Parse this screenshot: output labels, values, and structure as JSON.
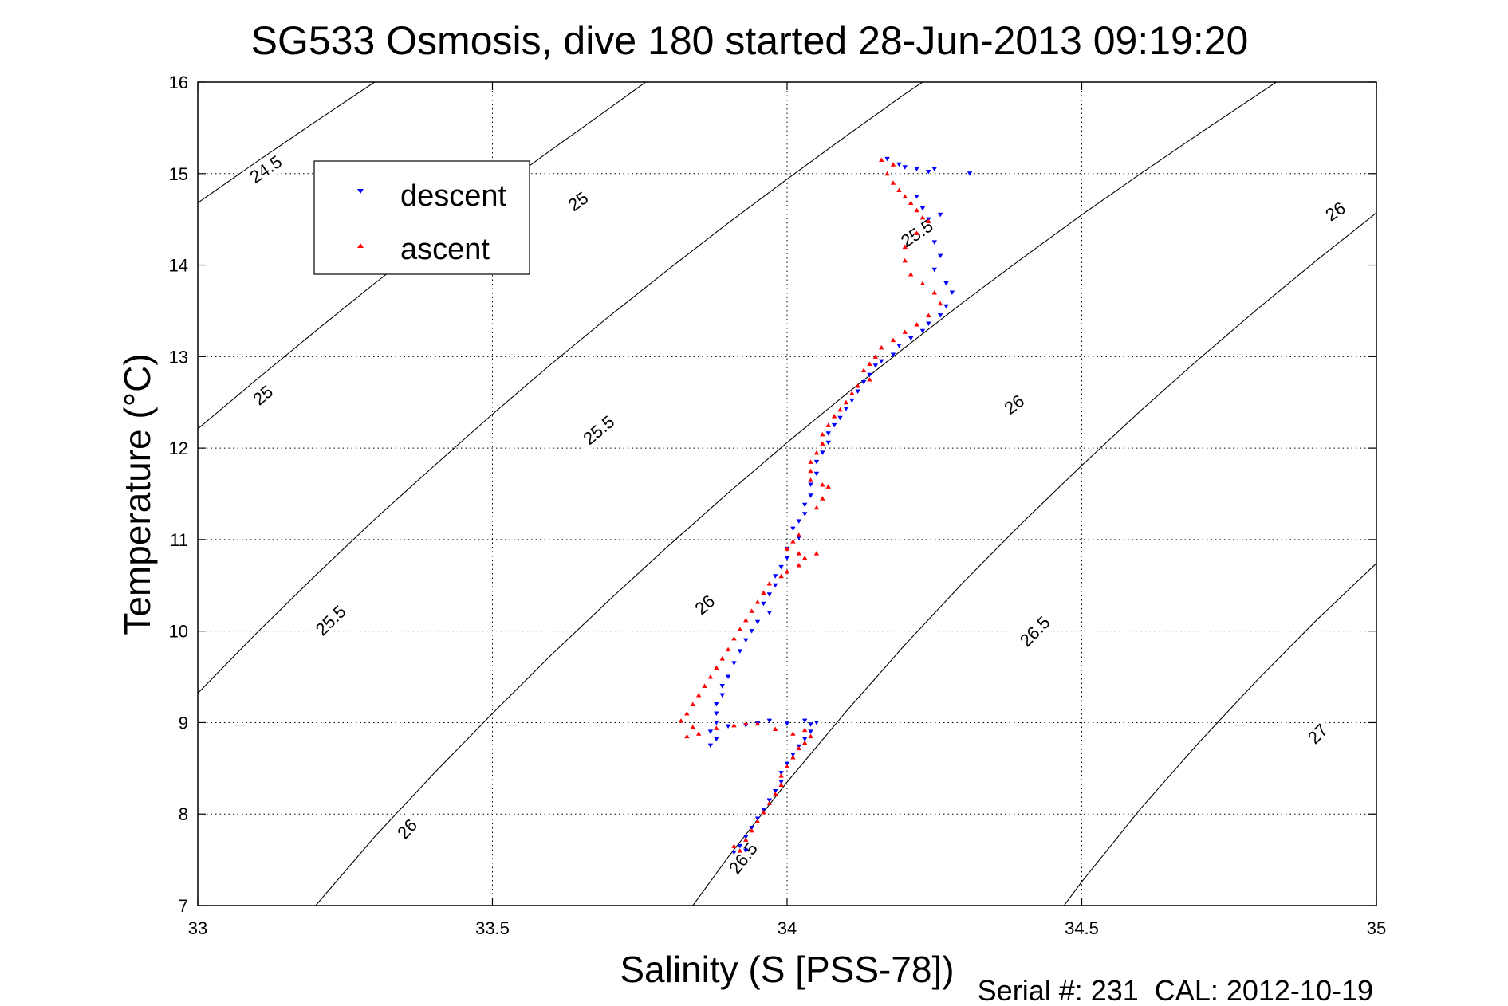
{
  "chart_data": {
    "type": "scatter",
    "title": "SG533 Osmosis, dive 180 started 28-Jun-2013 09:19:20",
    "xlabel": "Salinity (S [PSS-78])",
    "ylabel": "Temperature (°C)",
    "footer": "Serial #: 231  CAL: 2012-10-19",
    "xlim": [
      33,
      35
    ],
    "ylim": [
      7,
      16
    ],
    "grid": true,
    "legend_position": "top-left",
    "x_ticks": [
      "33",
      "33.5",
      "34",
      "34.5",
      "35"
    ],
    "y_ticks": [
      "7",
      "8",
      "9",
      "10",
      "11",
      "12",
      "13",
      "14",
      "15",
      "16"
    ],
    "contours": [
      {
        "label": "24.5",
        "points": [
          [
            33.0,
            14.68
          ],
          [
            33.1,
            15.13
          ],
          [
            33.2,
            15.57
          ],
          [
            33.3,
            16.0
          ]
        ]
      },
      {
        "label": "25",
        "points": [
          [
            33.0,
            12.21
          ],
          [
            33.1,
            12.75
          ],
          [
            33.2,
            13.28
          ],
          [
            33.3,
            13.8
          ],
          [
            33.4,
            14.3
          ],
          [
            33.5,
            14.79
          ],
          [
            33.6,
            15.26
          ],
          [
            33.7,
            15.72
          ],
          [
            33.76,
            16.0
          ]
        ]
      },
      {
        "label": "25.5",
        "points": [
          [
            33.0,
            9.32
          ],
          [
            33.1,
            9.98
          ],
          [
            33.2,
            10.61
          ],
          [
            33.3,
            11.22
          ],
          [
            33.4,
            11.8
          ],
          [
            33.5,
            12.37
          ],
          [
            33.6,
            12.92
          ],
          [
            33.7,
            13.45
          ],
          [
            33.8,
            13.96
          ],
          [
            33.9,
            14.46
          ],
          [
            34.0,
            14.94
          ],
          [
            34.1,
            15.41
          ],
          [
            34.2,
            15.87
          ],
          [
            34.23,
            16.0
          ]
        ]
      },
      {
        "label": "26",
        "points": [
          [
            33.2,
            7.0
          ],
          [
            33.3,
            7.75
          ],
          [
            33.4,
            8.44
          ],
          [
            33.5,
            9.1
          ],
          [
            33.6,
            9.74
          ],
          [
            33.7,
            10.35
          ],
          [
            33.8,
            10.94
          ],
          [
            33.9,
            11.51
          ],
          [
            34.0,
            12.06
          ],
          [
            34.1,
            12.59
          ],
          [
            34.2,
            13.1
          ],
          [
            34.3,
            13.6
          ],
          [
            34.4,
            14.08
          ],
          [
            34.5,
            14.55
          ],
          [
            34.6,
            15.0
          ],
          [
            34.7,
            15.44
          ],
          [
            34.8,
            15.87
          ],
          [
            34.83,
            16.0
          ]
        ]
      },
      {
        "label": "26.5",
        "points": [
          [
            33.84,
            7.0
          ],
          [
            33.9,
            7.53
          ],
          [
            34.0,
            8.35
          ],
          [
            34.1,
            9.12
          ],
          [
            34.2,
            9.85
          ],
          [
            34.3,
            10.54
          ],
          [
            34.4,
            11.19
          ],
          [
            34.5,
            11.81
          ],
          [
            34.6,
            12.41
          ],
          [
            34.7,
            12.98
          ],
          [
            34.8,
            13.53
          ],
          [
            34.9,
            14.06
          ],
          [
            35.0,
            14.57
          ]
        ]
      },
      {
        "label": "27",
        "points": [
          [
            34.47,
            7.0
          ],
          [
            34.5,
            7.26
          ],
          [
            34.6,
            8.06
          ],
          [
            34.7,
            8.79
          ],
          [
            34.8,
            9.48
          ],
          [
            34.9,
            10.13
          ],
          [
            35.0,
            10.74
          ]
        ]
      }
    ],
    "contour_labels": [
      {
        "text": "24.5",
        "x": 33.115,
        "y": 15.05
      },
      {
        "text": "25",
        "x": 33.645,
        "y": 14.7
      },
      {
        "text": "25",
        "x": 33.11,
        "y": 12.58
      },
      {
        "text": "25.5",
        "x": 33.225,
        "y": 10.12
      },
      {
        "text": "25.5",
        "x": 33.68,
        "y": 12.2
      },
      {
        "text": "25.5",
        "x": 34.22,
        "y": 14.35
      },
      {
        "text": "26",
        "x": 33.355,
        "y": 7.84
      },
      {
        "text": "26",
        "x": 33.86,
        "y": 10.29
      },
      {
        "text": "26",
        "x": 34.385,
        "y": 12.48
      },
      {
        "text": "26",
        "x": 34.93,
        "y": 14.59
      },
      {
        "text": "26.5",
        "x": 33.925,
        "y": 7.52
      },
      {
        "text": "26.5",
        "x": 34.42,
        "y": 10.0
      },
      {
        "text": "27",
        "x": 34.9,
        "y": 8.88
      }
    ],
    "series": [
      {
        "name": "descent",
        "color": "#0000ff",
        "marker": "triangle-down",
        "points": [
          [
            34.17,
            15.16
          ],
          [
            34.19,
            15.1
          ],
          [
            34.2,
            15.07
          ],
          [
            34.22,
            15.05
          ],
          [
            34.24,
            15.02
          ],
          [
            34.25,
            15.05
          ],
          [
            34.31,
            15.0
          ],
          [
            34.22,
            14.75
          ],
          [
            34.23,
            14.62
          ],
          [
            34.24,
            14.5
          ],
          [
            34.26,
            14.55
          ],
          [
            34.25,
            14.25
          ],
          [
            34.26,
            14.1
          ],
          [
            34.25,
            13.95
          ],
          [
            34.27,
            13.8
          ],
          [
            34.28,
            13.7
          ],
          [
            34.27,
            13.55
          ],
          [
            34.26,
            13.45
          ],
          [
            34.24,
            13.36
          ],
          [
            34.23,
            13.28
          ],
          [
            34.21,
            13.2
          ],
          [
            34.19,
            13.12
          ],
          [
            34.18,
            13.02
          ],
          [
            34.16,
            12.95
          ],
          [
            34.15,
            12.9
          ],
          [
            34.14,
            12.8
          ],
          [
            34.13,
            12.72
          ],
          [
            34.12,
            12.62
          ],
          [
            34.11,
            12.52
          ],
          [
            34.1,
            12.43
          ],
          [
            34.09,
            12.33
          ],
          [
            34.08,
            12.25
          ],
          [
            34.07,
            12.16
          ],
          [
            34.07,
            12.06
          ],
          [
            34.06,
            11.95
          ],
          [
            34.05,
            11.85
          ],
          [
            34.05,
            11.72
          ],
          [
            34.04,
            11.6
          ],
          [
            34.04,
            11.48
          ],
          [
            34.03,
            11.38
          ],
          [
            34.03,
            11.28
          ],
          [
            34.02,
            11.2
          ],
          [
            34.01,
            11.12
          ],
          [
            34.02,
            11.02
          ],
          [
            34.0,
            10.9
          ],
          [
            34.0,
            10.8
          ],
          [
            33.99,
            10.7
          ],
          [
            33.98,
            10.6
          ],
          [
            33.98,
            10.5
          ],
          [
            33.97,
            10.4
          ],
          [
            33.96,
            10.3
          ],
          [
            33.97,
            10.2
          ],
          [
            33.95,
            10.1
          ],
          [
            33.94,
            10.0
          ],
          [
            33.93,
            9.9
          ],
          [
            33.92,
            9.78
          ],
          [
            33.91,
            9.65
          ],
          [
            33.9,
            9.5
          ],
          [
            33.89,
            9.4
          ],
          [
            33.89,
            9.3
          ],
          [
            33.88,
            9.2
          ],
          [
            33.88,
            9.1
          ],
          [
            33.88,
            9.0
          ],
          [
            33.87,
            8.9
          ],
          [
            33.88,
            8.82
          ],
          [
            33.87,
            8.75
          ],
          [
            33.9,
            8.96
          ],
          [
            33.93,
            8.97
          ],
          [
            33.95,
            8.99
          ],
          [
            33.97,
            9.02
          ],
          [
            34.0,
            8.99
          ],
          [
            34.03,
            9.02
          ],
          [
            34.04,
            8.98
          ],
          [
            34.05,
            9.0
          ],
          [
            34.04,
            8.9
          ],
          [
            34.03,
            8.82
          ],
          [
            34.02,
            8.74
          ],
          [
            34.01,
            8.65
          ],
          [
            34.0,
            8.55
          ],
          [
            33.99,
            8.45
          ],
          [
            33.99,
            8.35
          ],
          [
            33.98,
            8.25
          ],
          [
            33.97,
            8.15
          ],
          [
            33.96,
            8.05
          ],
          [
            33.95,
            7.95
          ],
          [
            33.94,
            7.85
          ],
          [
            33.93,
            7.75
          ],
          [
            33.92,
            7.65
          ],
          [
            33.91,
            7.58
          ],
          [
            33.93,
            7.6
          ]
        ]
      },
      {
        "name": "ascent",
        "color": "#ff0000",
        "marker": "triangle-up",
        "points": [
          [
            34.16,
            15.15
          ],
          [
            34.18,
            15.1
          ],
          [
            34.17,
            15.0
          ],
          [
            34.18,
            14.9
          ],
          [
            34.19,
            14.82
          ],
          [
            34.2,
            14.75
          ],
          [
            34.21,
            14.68
          ],
          [
            34.22,
            14.6
          ],
          [
            34.23,
            14.52
          ],
          [
            34.24,
            14.48
          ],
          [
            34.22,
            14.35
          ],
          [
            34.2,
            14.2
          ],
          [
            34.2,
            14.05
          ],
          [
            34.21,
            13.9
          ],
          [
            34.23,
            13.8
          ],
          [
            34.25,
            13.7
          ],
          [
            34.26,
            13.58
          ],
          [
            34.24,
            13.45
          ],
          [
            34.22,
            13.35
          ],
          [
            34.2,
            13.27
          ],
          [
            34.18,
            13.18
          ],
          [
            34.16,
            13.1
          ],
          [
            34.15,
            13.0
          ],
          [
            34.14,
            12.92
          ],
          [
            34.13,
            12.85
          ],
          [
            34.14,
            12.75
          ],
          [
            34.12,
            12.68
          ],
          [
            34.11,
            12.6
          ],
          [
            34.1,
            12.5
          ],
          [
            34.09,
            12.42
          ],
          [
            34.08,
            12.35
          ],
          [
            34.07,
            12.25
          ],
          [
            34.06,
            12.15
          ],
          [
            34.06,
            12.05
          ],
          [
            34.05,
            11.95
          ],
          [
            34.04,
            11.85
          ],
          [
            34.04,
            11.75
          ],
          [
            34.04,
            11.65
          ],
          [
            34.06,
            11.6
          ],
          [
            34.07,
            11.58
          ],
          [
            34.06,
            11.45
          ],
          [
            34.05,
            11.35
          ],
          [
            34.02,
            11.05
          ],
          [
            34.01,
            10.98
          ],
          [
            34.0,
            10.9
          ],
          [
            34.02,
            10.85
          ],
          [
            34.03,
            10.8
          ],
          [
            34.05,
            10.85
          ],
          [
            34.02,
            10.72
          ],
          [
            34.0,
            10.65
          ],
          [
            33.99,
            10.6
          ],
          [
            33.97,
            10.52
          ],
          [
            33.96,
            10.42
          ],
          [
            33.95,
            10.32
          ],
          [
            33.94,
            10.22
          ],
          [
            33.93,
            10.12
          ],
          [
            33.92,
            10.02
          ],
          [
            33.91,
            9.92
          ],
          [
            33.9,
            9.8
          ],
          [
            33.89,
            9.7
          ],
          [
            33.88,
            9.6
          ],
          [
            33.87,
            9.5
          ],
          [
            33.86,
            9.4
          ],
          [
            33.85,
            9.3
          ],
          [
            33.84,
            9.2
          ],
          [
            33.83,
            9.1
          ],
          [
            33.82,
            9.02
          ],
          [
            33.84,
            8.95
          ],
          [
            33.83,
            8.85
          ],
          [
            33.85,
            8.88
          ],
          [
            33.88,
            8.94
          ],
          [
            33.91,
            8.97
          ],
          [
            33.93,
            8.99
          ],
          [
            33.95,
            8.99
          ],
          [
            33.98,
            8.93
          ],
          [
            34.01,
            8.88
          ],
          [
            34.03,
            8.92
          ],
          [
            34.04,
            8.85
          ],
          [
            34.03,
            8.78
          ],
          [
            34.02,
            8.72
          ],
          [
            34.01,
            8.62
          ],
          [
            34.0,
            8.52
          ],
          [
            33.99,
            8.42
          ],
          [
            33.99,
            8.32
          ],
          [
            33.98,
            8.22
          ],
          [
            33.97,
            8.12
          ],
          [
            33.96,
            8.02
          ],
          [
            33.95,
            7.92
          ],
          [
            33.94,
            7.82
          ],
          [
            33.93,
            7.72
          ],
          [
            33.91,
            7.65
          ],
          [
            33.92,
            7.6
          ]
        ]
      }
    ]
  }
}
